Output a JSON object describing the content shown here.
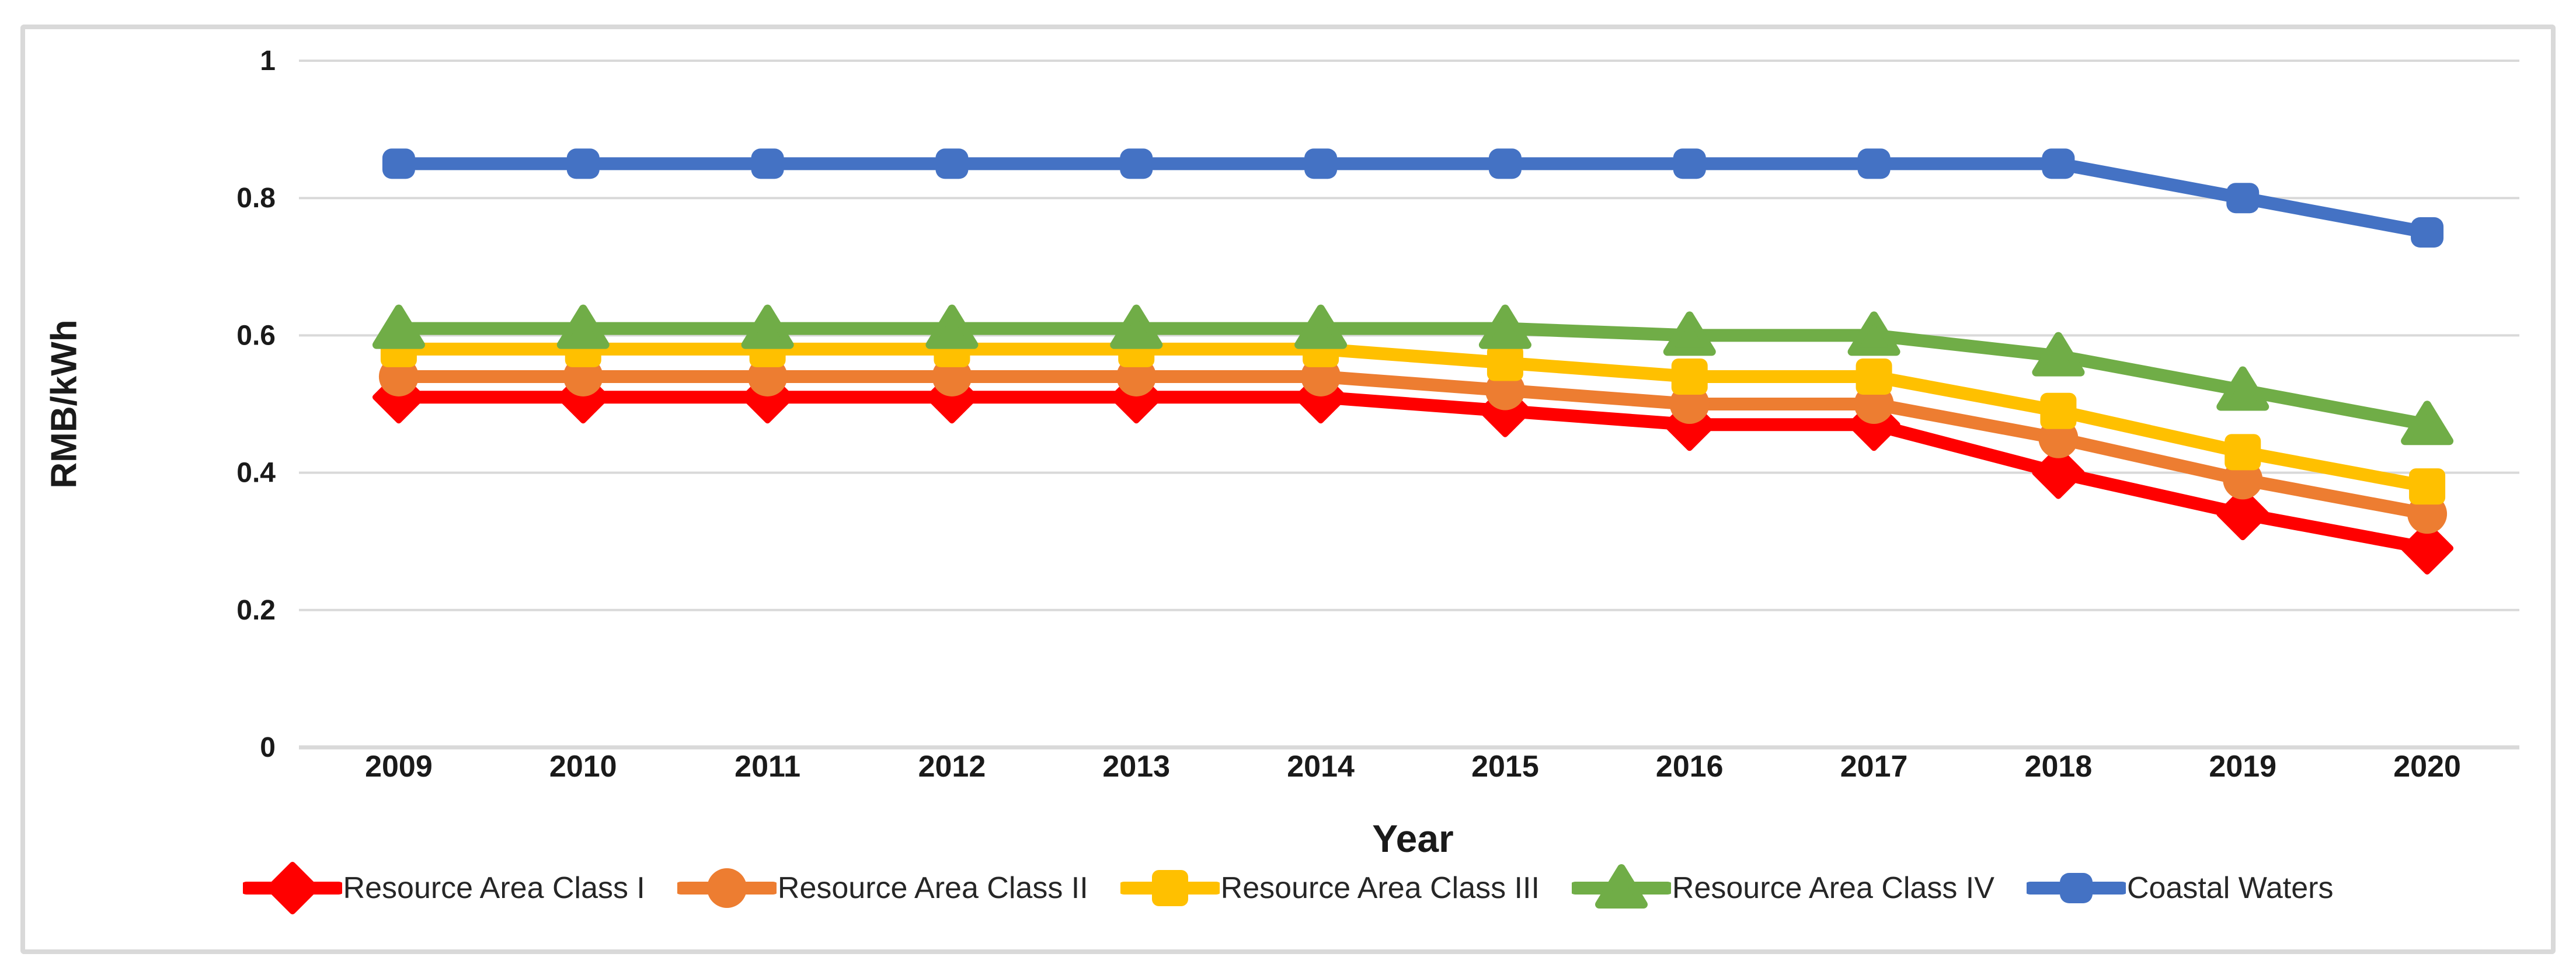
{
  "canvas": {
    "background_color": "#FFFFFF",
    "border_color": "#D9D9D9"
  },
  "chart_data": {
    "type": "line",
    "title": "",
    "xlabel": "Year",
    "ylabel": "RMB/kWh",
    "categories": [
      "2009",
      "2010",
      "2011",
      "2012",
      "2013",
      "2014",
      "2015",
      "2016",
      "2017",
      "2018",
      "2019",
      "2020"
    ],
    "ylim": [
      0,
      1
    ],
    "yticks": [
      0,
      0.2,
      0.4,
      0.6,
      0.8,
      1
    ],
    "ytick_labels": [
      "0",
      "0.2",
      "0.4",
      "0.6",
      "0.8",
      "1"
    ],
    "grid": true,
    "gridline_color": "#D9D9D9",
    "text_color": "#1a1a1a",
    "legend_position": "bottom",
    "series": [
      {
        "name": "Resource Area Class I",
        "color": "#FF0000",
        "marker": "diamond",
        "values": [
          0.51,
          0.51,
          0.51,
          0.51,
          0.51,
          0.51,
          0.49,
          0.47,
          0.47,
          0.4,
          0.34,
          0.29
        ]
      },
      {
        "name": "Resource Area Class II",
        "color": "#ED7D31",
        "marker": "circle",
        "values": [
          0.54,
          0.54,
          0.54,
          0.54,
          0.54,
          0.54,
          0.52,
          0.5,
          0.5,
          0.45,
          0.39,
          0.34
        ]
      },
      {
        "name": "Resource Area Class III",
        "color": "#FFC000",
        "marker": "square",
        "values": [
          0.58,
          0.58,
          0.58,
          0.58,
          0.58,
          0.58,
          0.56,
          0.54,
          0.54,
          0.49,
          0.43,
          0.38
        ]
      },
      {
        "name": "Resource Area Class IV",
        "color": "#70AD47",
        "marker": "triangle",
        "values": [
          0.61,
          0.61,
          0.61,
          0.61,
          0.61,
          0.61,
          0.61,
          0.6,
          0.6,
          0.57,
          0.52,
          0.47
        ]
      },
      {
        "name": "Coastal Waters",
        "color": "#4472C4",
        "marker": "rounded-square",
        "values": [
          0.85,
          0.85,
          0.85,
          0.85,
          0.85,
          0.85,
          0.85,
          0.85,
          0.85,
          0.85,
          0.8,
          0.75
        ]
      }
    ]
  }
}
